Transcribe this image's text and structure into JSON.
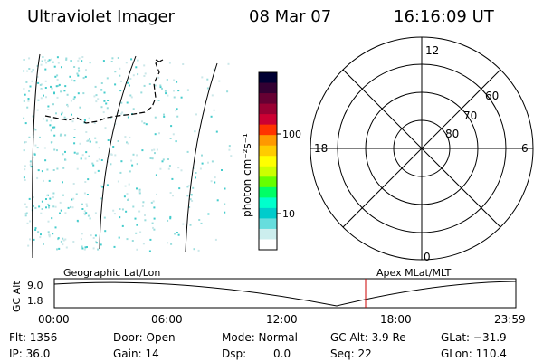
{
  "header": {
    "title": "Ultraviolet Imager",
    "date": "08 Mar 07",
    "time": "16:16:09 UT"
  },
  "colorbar": {
    "units_label": "photon cm⁻²s⁻¹",
    "tick_labels": [
      "100",
      "10"
    ],
    "colors": [
      "#000033",
      "#330033",
      "#660033",
      "#990033",
      "#cc0033",
      "#ff3300",
      "#ff9900",
      "#ffcc00",
      "#ffff00",
      "#ccff00",
      "#66ff00",
      "#00ff66",
      "#00ffcc",
      "#00cccc",
      "#66dddd",
      "#cceeee",
      "#ffffff"
    ]
  },
  "polar_plot": {
    "mlt_labels": {
      "top": "12",
      "left": "18",
      "right": "6",
      "bottom": "0"
    },
    "lat_labels": [
      "60",
      "70",
      "80"
    ]
  },
  "timeline": {
    "left_label": "Geographic Lat/Lon",
    "right_label": "Apex MLat/MLT",
    "axis_title": "GC Alt",
    "y_ticks": [
      "9.0",
      "1.8"
    ],
    "x_ticks": [
      "00:00",
      "06:00",
      "12:00",
      "18:00",
      "23:59"
    ],
    "marker_color": "#cc0000"
  },
  "status": {
    "flt": "Flt: 1356",
    "ip": "IP: 36.0",
    "door": "Door: Open",
    "gain": "Gain: 14",
    "mode": "Mode: Normal",
    "dsp_label": "Dsp:",
    "dsp_value": "0.0",
    "gc_alt": "GC Alt: 3.9 Re",
    "seq": "Seq: 22",
    "glat": "GLat: −31.9",
    "glon": "GLon: 110.4"
  }
}
